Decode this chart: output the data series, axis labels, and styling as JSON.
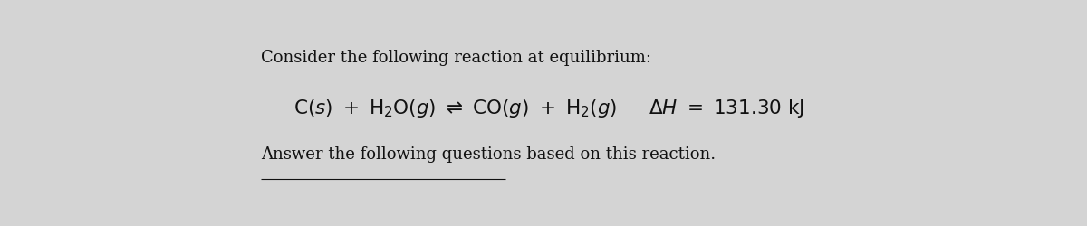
{
  "bg_color": "#d4d4d4",
  "text_color": "#111111",
  "line1": "Consider the following reaction at equilibrium:",
  "line3": "Answer the following questions based on this reaction.",
  "fontsize_small": 13.0,
  "fontsize_eq": 15.5,
  "fig_width": 12.0,
  "fig_height": 2.5,
  "dpi": 100
}
